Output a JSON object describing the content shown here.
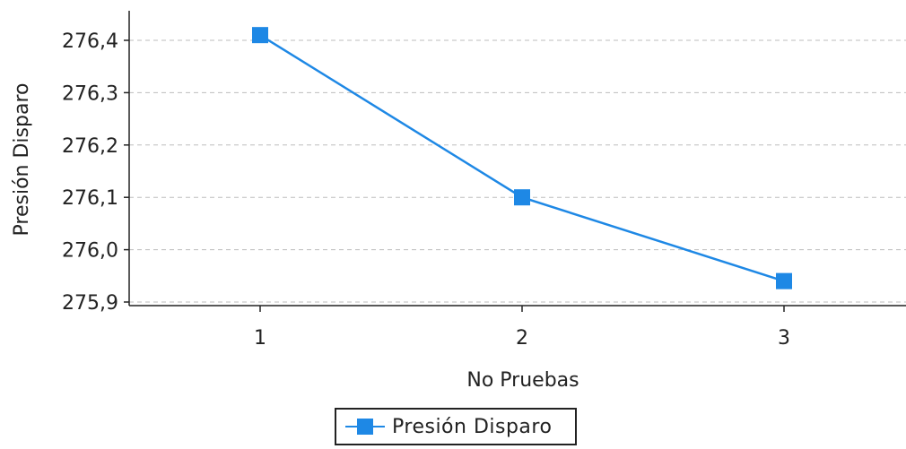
{
  "chart_data": {
    "type": "line",
    "xlabel": "No Pruebas",
    "ylabel": "Presión Disparo",
    "categories": [
      "1",
      "2",
      "3"
    ],
    "yticks": [
      "275,9",
      "276,0",
      "276,1",
      "276,2",
      "276,3",
      "276,4"
    ],
    "ylim": [
      275.9,
      276.4
    ],
    "grid": true,
    "legend_position": "bottom",
    "series": [
      {
        "name": "Presión Disparo",
        "color": "#1e88e5",
        "marker": "square",
        "values": [
          276.41,
          276.1,
          275.94
        ]
      }
    ]
  }
}
